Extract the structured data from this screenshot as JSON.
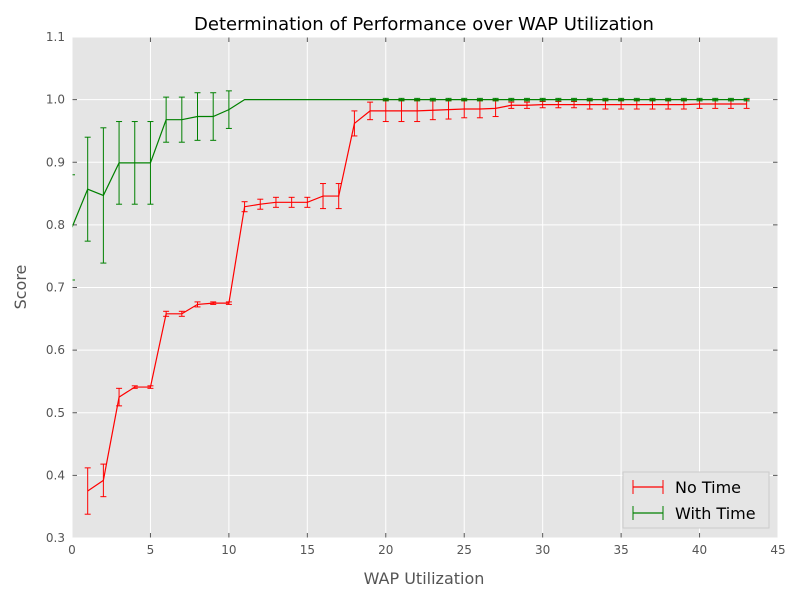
{
  "chart_data": {
    "type": "line",
    "title": "Determination of Performance over WAP Utilization",
    "xlabel": "WAP Utilization",
    "ylabel": "Score",
    "xlim": [
      0,
      45
    ],
    "ylim": [
      0.3,
      1.1
    ],
    "xticks": [
      0,
      5,
      10,
      15,
      20,
      25,
      30,
      35,
      40,
      45
    ],
    "yticks": [
      0.3,
      0.4,
      0.5,
      0.6,
      0.7,
      0.8,
      0.9,
      1.0,
      1.1
    ],
    "xtick_labels": [
      "0",
      "5",
      "10",
      "15",
      "20",
      "25",
      "30",
      "35",
      "40",
      "45"
    ],
    "ytick_labels": [
      "0.3",
      "0.4",
      "0.5",
      "0.6",
      "0.7",
      "0.8",
      "0.9",
      "1.0",
      "1.1"
    ],
    "grid": true,
    "legend_position": "bottom-right",
    "series": [
      {
        "name": "No Time",
        "color": "#ff0000",
        "x": [
          1,
          2,
          3,
          4,
          5,
          6,
          7,
          8,
          9,
          10,
          11,
          12,
          13,
          14,
          15,
          16,
          17,
          18,
          19,
          20,
          21,
          22,
          23,
          24,
          25,
          26,
          27,
          28,
          29,
          30,
          31,
          32,
          33,
          34,
          35,
          36,
          37,
          38,
          39,
          40,
          41,
          42,
          43
        ],
        "y": [
          0.375,
          0.392,
          0.525,
          0.541,
          0.541,
          0.658,
          0.658,
          0.673,
          0.675,
          0.675,
          0.829,
          0.833,
          0.836,
          0.836,
          0.836,
          0.846,
          0.846,
          0.962,
          0.982,
          0.982,
          0.982,
          0.982,
          0.983,
          0.984,
          0.985,
          0.985,
          0.986,
          0.991,
          0.991,
          0.992,
          0.992,
          0.992,
          0.992,
          0.992,
          0.992,
          0.992,
          0.992,
          0.992,
          0.992,
          0.993,
          0.993,
          0.993,
          0.993
        ],
        "err": [
          0.037,
          0.026,
          0.014,
          0.002,
          0.002,
          0.004,
          0.004,
          0.004,
          0.002,
          0.002,
          0.008,
          0.008,
          0.008,
          0.008,
          0.008,
          0.02,
          0.02,
          0.02,
          0.014,
          0.017,
          0.017,
          0.017,
          0.015,
          0.015,
          0.014,
          0.014,
          0.013,
          0.005,
          0.005,
          0.005,
          0.005,
          0.005,
          0.007,
          0.007,
          0.007,
          0.007,
          0.007,
          0.007,
          0.007,
          0.007,
          0.007,
          0.007,
          0.007
        ]
      },
      {
        "name": "With Time",
        "color": "#008000",
        "x": [
          0,
          1,
          2,
          3,
          4,
          5,
          6,
          7,
          8,
          9,
          10,
          11,
          12,
          13,
          14,
          15,
          16,
          17,
          18,
          19,
          20,
          21,
          22,
          23,
          24,
          25,
          26,
          27,
          28,
          29,
          30,
          31,
          32,
          33,
          34,
          35,
          36,
          37,
          38,
          39,
          40,
          41,
          42,
          43
        ],
        "y": [
          0.796,
          0.857,
          0.847,
          0.899,
          0.899,
          0.899,
          0.968,
          0.968,
          0.973,
          0.973,
          0.984,
          1.0,
          1.0,
          1.0,
          1.0,
          1.0,
          1.0,
          1.0,
          1.0,
          1.0,
          1.0,
          1.0,
          1.0,
          1.0,
          1.0,
          1.0,
          1.0,
          1.0,
          1.0,
          1.0,
          1.0,
          1.0,
          1.0,
          1.0,
          1.0,
          1.0,
          1.0,
          1.0,
          1.0,
          1.0,
          1.0,
          1.0,
          1.0,
          1.0
        ],
        "err": [
          0.084,
          0.083,
          0.108,
          0.066,
          0.066,
          0.066,
          0.036,
          0.036,
          0.038,
          0.038,
          0.03,
          0,
          0,
          0,
          0,
          0,
          0,
          0,
          0,
          0,
          0.002,
          0.002,
          0.002,
          0.002,
          0.002,
          0.002,
          0.002,
          0.002,
          0.002,
          0.002,
          0.002,
          0.002,
          0.002,
          0.002,
          0.002,
          0.002,
          0.002,
          0.002,
          0.002,
          0.002,
          0.002,
          0.002,
          0.002,
          0.002
        ]
      }
    ]
  }
}
